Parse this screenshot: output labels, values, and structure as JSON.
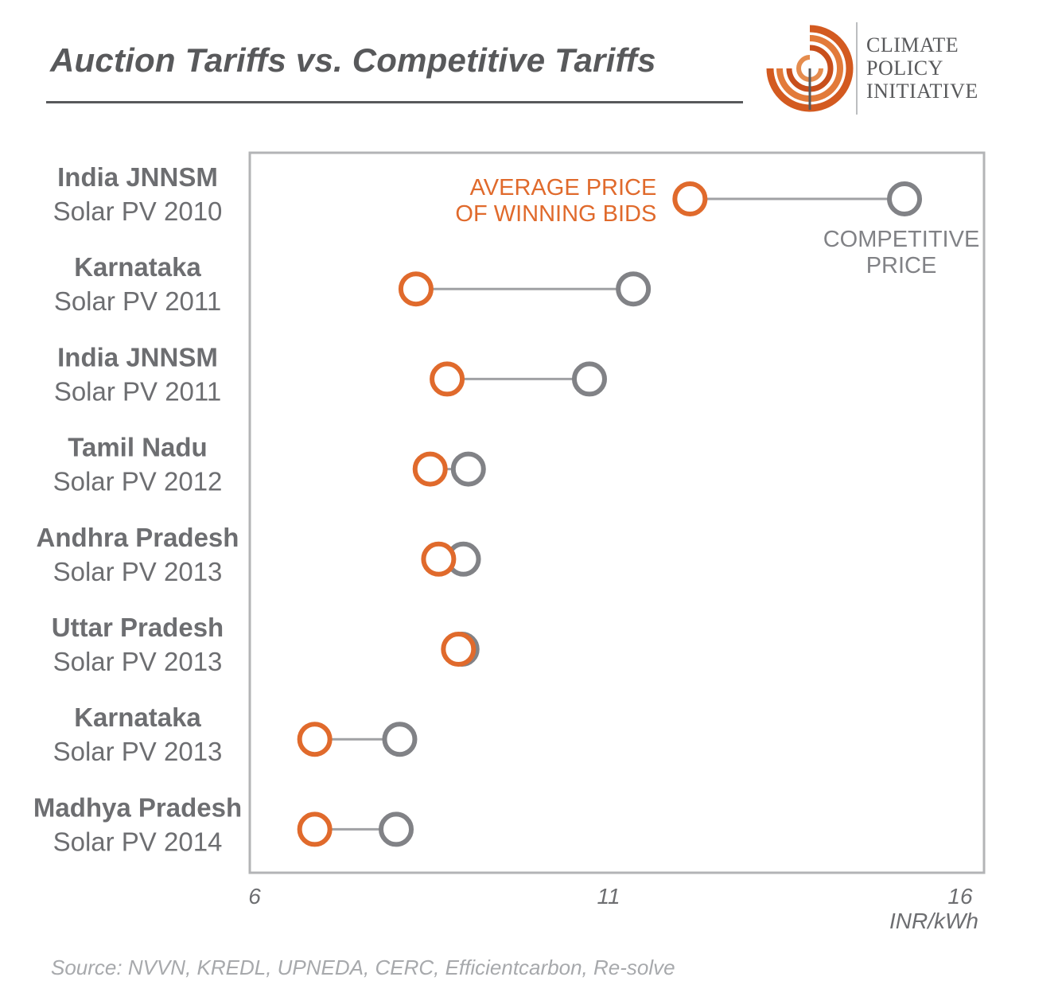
{
  "header": {
    "title": "Auction Tariffs vs. Competitive Tariffs",
    "logo_lines": [
      "CLIMATE",
      "POLICY",
      "INITIATIVE"
    ]
  },
  "colors": {
    "auction": "#e06a2c",
    "competitive": "#818286",
    "connector": "#a0a1a4",
    "frame": "#b3b4b6",
    "text": "#6d6e71"
  },
  "chart_data": {
    "type": "scatter",
    "subtype": "dumbbell",
    "title": "Auction Tariffs vs. Competitive Tariffs",
    "xlabel": "INR/kWh",
    "xlim": [
      6,
      16
    ],
    "x_ticks": [
      "6",
      "11",
      "16"
    ],
    "grid": false,
    "categories": [
      {
        "region": "India JNNSM",
        "label": "Solar PV 2010"
      },
      {
        "region": "Karnataka",
        "label": "Solar PV 2011"
      },
      {
        "region": "India JNNSM",
        "label": "Solar PV 2011"
      },
      {
        "region": "Tamil Nadu",
        "label": "Solar PV 2012"
      },
      {
        "region": "Andhra Pradesh",
        "label": "Solar PV 2013"
      },
      {
        "region": "Uttar Pradesh",
        "label": "Solar PV 2013"
      },
      {
        "region": "Karnataka",
        "label": "Solar PV 2013"
      },
      {
        "region": "Madhya Pradesh",
        "label": "Solar PV 2014"
      }
    ],
    "series": [
      {
        "name": "AVERAGE PRICE OF WINNING BIDS",
        "values": [
          12.15,
          8.28,
          8.72,
          8.48,
          8.6,
          8.88,
          6.85,
          6.85
        ]
      },
      {
        "name": "COMPETITIVE PRICE",
        "values": [
          15.18,
          11.35,
          10.73,
          9.02,
          8.95,
          8.93,
          8.05,
          8.0
        ]
      }
    ],
    "annotations": [
      {
        "series": 0,
        "lines": [
          "AVERAGE PRICE",
          "OF WINNING BIDS"
        ]
      },
      {
        "series": 1,
        "lines": [
          "COMPETITIVE",
          "PRICE"
        ]
      }
    ]
  },
  "footer": {
    "source": "Source: NVVN, KREDL, UPNEDA, CERC, Efficientcarbon, Re-solve"
  }
}
